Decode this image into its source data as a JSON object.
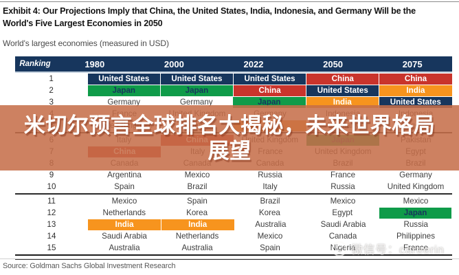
{
  "page": {
    "title_line1": "Exhibit 4: Our Projections Imply that China, the United States, India, Indonesia, and Germany Will be the",
    "title_line2": "World's Five Largest Economies in 2050",
    "subtitle": "World's largest economies (measured in USD)",
    "source": "Source: Goldman Sachs Global Investment Research"
  },
  "overlay": {
    "line1": "米切尔预言全球排名大揭秘，未来世界格局",
    "line2": "展望",
    "background_color": "#C56E4A",
    "text_color": "#FFFFFF"
  },
  "watermark": {
    "icon": "smiley-face-icon",
    "text": "微信号：careerin"
  },
  "colors": {
    "header_bg": "#17365D",
    "united_states_highlight": "#17365D",
    "china_highlight": "#C9342C",
    "japan_highlight": "#0F9B49",
    "india_highlight": "#F7941E",
    "plain_text": "#3C3C3C"
  },
  "chart_data": {
    "type": "table",
    "title": "Exhibit 4: Our Projections Imply that China, the United States, India, Indonesia, and Germany Will be the World's Five Largest Economies in 2050",
    "subtitle": "World's largest economies (measured in USD)",
    "source": "Source: Goldman Sachs Global Investment Research",
    "columns": [
      "Ranking",
      "1980",
      "2000",
      "2022",
      "2050",
      "2075"
    ],
    "highlight_legend": {
      "us": "United States (navy #17365D)",
      "cn": "China (red #C9342C)",
      "jp": "Japan (green #0F9B49)",
      "in": "India (orange #F7941E)"
    },
    "rows": [
      {
        "rank": 1,
        "cells": [
          {
            "text": "United States",
            "hl": "us"
          },
          {
            "text": "United States",
            "hl": "us"
          },
          {
            "text": "United States",
            "hl": "us"
          },
          {
            "text": "China",
            "hl": "cn"
          },
          {
            "text": "China",
            "hl": "cn"
          }
        ]
      },
      {
        "rank": 2,
        "cells": [
          {
            "text": "Japan",
            "hl": "jp"
          },
          {
            "text": "Japan",
            "hl": "jp"
          },
          {
            "text": "China",
            "hl": "cn"
          },
          {
            "text": "United States",
            "hl": "us"
          },
          {
            "text": "India",
            "hl": "in"
          }
        ]
      },
      {
        "rank": 3,
        "cells": [
          {
            "text": "Germany",
            "hl": null
          },
          {
            "text": "Germany",
            "hl": null
          },
          {
            "text": "Japan",
            "hl": "jp"
          },
          {
            "text": "India",
            "hl": "in"
          },
          {
            "text": "United States",
            "hl": "us"
          }
        ]
      },
      {
        "rank": 4,
        "cells": [
          {
            "text": "France",
            "hl": null
          },
          {
            "text": "United Kingdom",
            "hl": null
          },
          {
            "text": "Germany",
            "hl": null
          },
          {
            "text": "Indonesia",
            "hl": null
          },
          {
            "text": "Indonesia",
            "hl": null
          }
        ]
      },
      {
        "rank": 5,
        "cells": [
          {
            "text": "United Kingdom",
            "hl": null
          },
          {
            "text": "France",
            "hl": null
          },
          {
            "text": "India",
            "hl": "in"
          },
          {
            "text": "Germany",
            "hl": null
          },
          {
            "text": "Nigeria",
            "hl": null
          }
        ]
      },
      {
        "rank": 6,
        "cells": [
          {
            "text": "Italy",
            "hl": null
          },
          {
            "text": "China",
            "hl": "cn"
          },
          {
            "text": "United Kingdom",
            "hl": null
          },
          {
            "text": "Japan",
            "hl": "jp"
          },
          {
            "text": "Pakistan",
            "hl": null
          }
        ]
      },
      {
        "rank": 7,
        "cells": [
          {
            "text": "China",
            "hl": "cn"
          },
          {
            "text": "Italy",
            "hl": null
          },
          {
            "text": "France",
            "hl": null
          },
          {
            "text": "United Kingdom",
            "hl": null
          },
          {
            "text": "Egypt",
            "hl": null
          }
        ]
      },
      {
        "rank": 8,
        "cells": [
          {
            "text": "Canada",
            "hl": null
          },
          {
            "text": "Canada",
            "hl": null
          },
          {
            "text": "Canada",
            "hl": null
          },
          {
            "text": "Brazil",
            "hl": null
          },
          {
            "text": "Brazil",
            "hl": null
          }
        ]
      },
      {
        "rank": 9,
        "cells": [
          {
            "text": "Argentina",
            "hl": null
          },
          {
            "text": "Mexico",
            "hl": null
          },
          {
            "text": "Russia",
            "hl": null
          },
          {
            "text": "France",
            "hl": null
          },
          {
            "text": "Germany",
            "hl": null
          }
        ]
      },
      {
        "rank": 10,
        "cells": [
          {
            "text": "Spain",
            "hl": null
          },
          {
            "text": "Brazil",
            "hl": null
          },
          {
            "text": "Italy",
            "hl": null
          },
          {
            "text": "Russia",
            "hl": null
          },
          {
            "text": "United Kingdom",
            "hl": null
          }
        ]
      },
      {
        "rank": 11,
        "cells": [
          {
            "text": "Mexico",
            "hl": null
          },
          {
            "text": "Spain",
            "hl": null
          },
          {
            "text": "Brazil",
            "hl": null
          },
          {
            "text": "Mexico",
            "hl": null
          },
          {
            "text": "Mexico",
            "hl": null
          }
        ]
      },
      {
        "rank": 12,
        "cells": [
          {
            "text": "Netherlands",
            "hl": null
          },
          {
            "text": "Korea",
            "hl": null
          },
          {
            "text": "Korea",
            "hl": null
          },
          {
            "text": "Egypt",
            "hl": null
          },
          {
            "text": "Japan",
            "hl": "jp"
          }
        ]
      },
      {
        "rank": 13,
        "cells": [
          {
            "text": "India",
            "hl": "in"
          },
          {
            "text": "India",
            "hl": "in"
          },
          {
            "text": "Australia",
            "hl": null
          },
          {
            "text": "Saudi Arabia",
            "hl": null
          },
          {
            "text": "Russia",
            "hl": null
          }
        ]
      },
      {
        "rank": 14,
        "cells": [
          {
            "text": "Saudi Arabia",
            "hl": null
          },
          {
            "text": "Netherlands",
            "hl": null
          },
          {
            "text": "Mexico",
            "hl": null
          },
          {
            "text": "Canada",
            "hl": null
          },
          {
            "text": "Philippines",
            "hl": null
          }
        ]
      },
      {
        "rank": 15,
        "cells": [
          {
            "text": "Australia",
            "hl": null
          },
          {
            "text": "Australia",
            "hl": null
          },
          {
            "text": "Spain",
            "hl": null
          },
          {
            "text": "Nigeria",
            "hl": null
          },
          {
            "text": "France",
            "hl": null
          }
        ]
      }
    ],
    "layout_hints": {
      "separator_lines_after_ranks": [
        5,
        10
      ],
      "double_rule_after_rank": 15
    }
  }
}
